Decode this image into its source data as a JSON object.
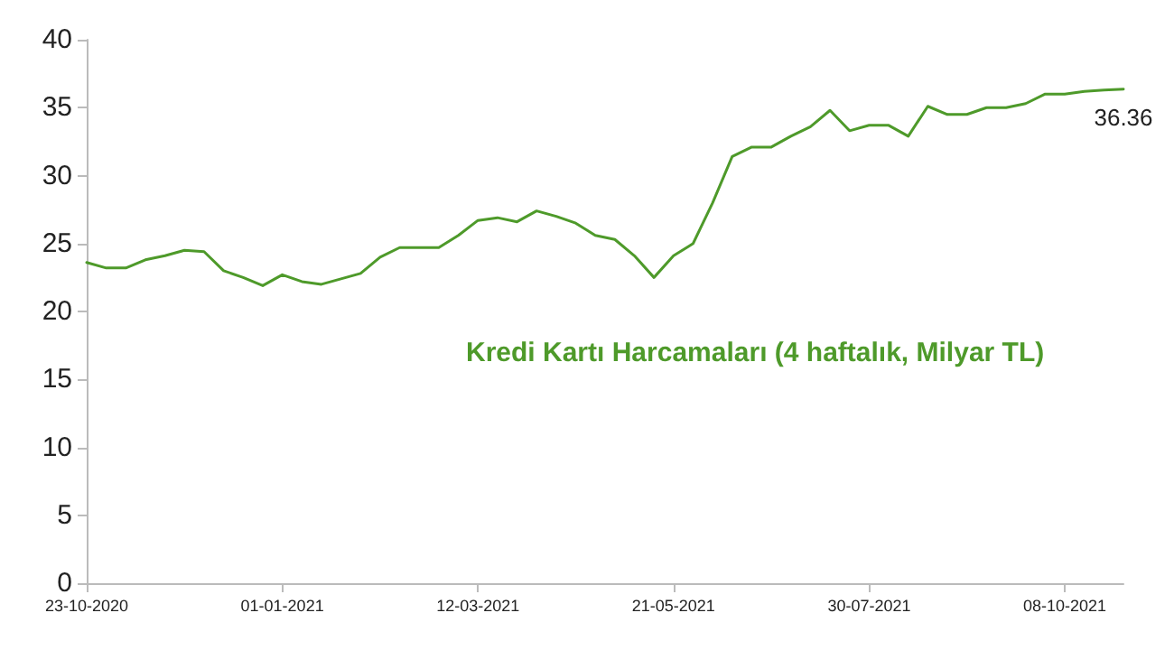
{
  "chart_data": {
    "type": "line",
    "ylim": [
      0,
      40
    ],
    "yticks": [
      0,
      5,
      10,
      15,
      20,
      25,
      30,
      35,
      40
    ],
    "xlim": [
      "2020-10-23",
      "2021-10-29"
    ],
    "xticks": [
      {
        "value": "2020-10-23",
        "label": "23-10-2020"
      },
      {
        "value": "2021-01-01",
        "label": "01-01-2021"
      },
      {
        "value": "2021-03-12",
        "label": "12-03-2021"
      },
      {
        "value": "2021-05-21",
        "label": "21-05-2021"
      },
      {
        "value": "2021-07-30",
        "label": "30-07-2021"
      },
      {
        "value": "2021-10-08",
        "label": "08-10-2021"
      }
    ],
    "grid": false,
    "legend": false,
    "marker": "none",
    "line_style": "solid",
    "x": [
      "2020-10-23",
      "2020-10-30",
      "2020-11-06",
      "2020-11-13",
      "2020-11-20",
      "2020-11-27",
      "2020-12-04",
      "2020-12-11",
      "2020-12-18",
      "2020-12-25",
      "2021-01-01",
      "2021-01-08",
      "2021-01-15",
      "2021-01-22",
      "2021-01-29",
      "2021-02-05",
      "2021-02-12",
      "2021-02-19",
      "2021-02-26",
      "2021-03-05",
      "2021-03-12",
      "2021-03-19",
      "2021-03-26",
      "2021-04-02",
      "2021-04-09",
      "2021-04-16",
      "2021-04-23",
      "2021-04-30",
      "2021-05-07",
      "2021-05-14",
      "2021-05-21",
      "2021-05-28",
      "2021-06-04",
      "2021-06-11",
      "2021-06-18",
      "2021-06-25",
      "2021-07-02",
      "2021-07-09",
      "2021-07-16",
      "2021-07-23",
      "2021-07-30",
      "2021-08-06",
      "2021-08-13",
      "2021-08-20",
      "2021-08-27",
      "2021-09-03",
      "2021-09-10",
      "2021-09-17",
      "2021-09-24",
      "2021-10-01",
      "2021-10-08",
      "2021-10-15",
      "2021-10-22",
      "2021-10-29"
    ],
    "series": [
      {
        "name": "Kredi Kartı Harcamaları (4 haftalık, Milyar TL)",
        "color": "#4e9a2a",
        "values": [
          23.6,
          23.2,
          23.2,
          23.8,
          24.1,
          24.5,
          24.4,
          23.0,
          22.5,
          21.9,
          22.7,
          22.2,
          22.0,
          22.4,
          22.8,
          24.0,
          24.7,
          24.7,
          24.7,
          25.6,
          26.7,
          26.9,
          26.6,
          27.4,
          27.0,
          26.5,
          25.6,
          25.3,
          24.1,
          22.5,
          24.1,
          25.0,
          28.0,
          31.4,
          32.1,
          32.1,
          32.9,
          33.6,
          34.8,
          33.3,
          33.7,
          33.7,
          32.9,
          35.1,
          34.5,
          34.5,
          35.0,
          35.0,
          35.3,
          36.0,
          36.0,
          36.2,
          36.3,
          36.36
        ],
        "value_labels": [
          null,
          null,
          null,
          null,
          null,
          null,
          null,
          null,
          null,
          null,
          null,
          null,
          null,
          null,
          null,
          null,
          null,
          null,
          null,
          null,
          null,
          null,
          null,
          null,
          null,
          null,
          null,
          null,
          null,
          null,
          null,
          null,
          null,
          null,
          null,
          null,
          null,
          null,
          null,
          null,
          null,
          null,
          null,
          null,
          null,
          null,
          null,
          null,
          null,
          null,
          null,
          null,
          null,
          "36.36"
        ]
      }
    ]
  }
}
